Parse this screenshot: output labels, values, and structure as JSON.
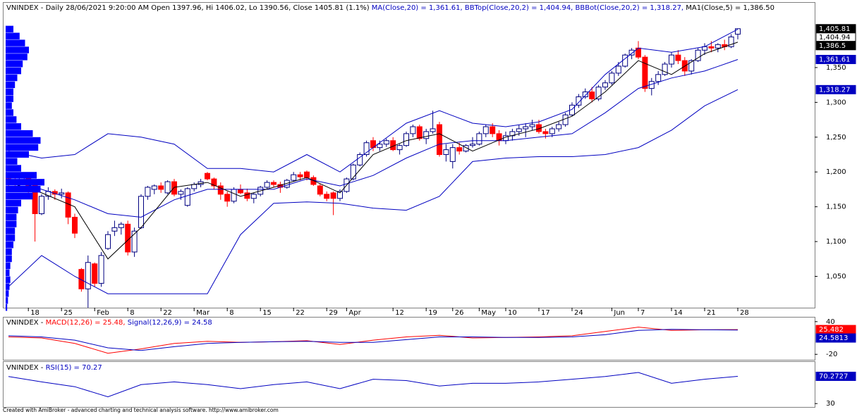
{
  "chart_data": [
    {
      "type": "candlestick",
      "title_parts": [
        {
          "text": "VNINDEX - Daily 28/06/2021 9:20:00 AM Open 1397.96, Hi 1406.02, Lo 1390.56, Close 1405.81 (1.1%)",
          "color": "#000000"
        },
        {
          "text": " MA(Close,20) = 1,361.61,",
          "color": "#0000c0"
        },
        {
          "text": " BBTop(Close,20,2) = 1,404.94,",
          "color": "#0000c0"
        },
        {
          "text": " BBBot(Close,20,2) = 1,318.27,",
          "color": "#0000c0"
        },
        {
          "text": " MA1(Close,5) = 1,386.50",
          "color": "#000000"
        }
      ],
      "categories": [
        null,
        null,
        null,
        "18",
        null,
        null,
        null,
        null,
        "25",
        null,
        null,
        null,
        null,
        "Feb",
        null,
        null,
        null,
        null,
        "8",
        null,
        null,
        null,
        null,
        "22",
        null,
        null,
        null,
        null,
        "Mar",
        null,
        null,
        null,
        null,
        "8",
        null,
        null,
        null,
        null,
        "15",
        null,
        null,
        null,
        null,
        "22",
        null,
        null,
        null,
        null,
        "29",
        null,
        null,
        "Apr",
        null,
        null,
        null,
        null,
        null,
        null,
        "12",
        null,
        null,
        null,
        null,
        "19",
        null,
        null,
        null,
        "26",
        null,
        null,
        null,
        "May",
        null,
        null,
        null,
        "10",
        null,
        null,
        null,
        null,
        "17",
        null,
        null,
        null,
        null,
        "24",
        null,
        null,
        null,
        null,
        null,
        "Jun",
        null,
        null,
        null,
        "7",
        null,
        null,
        null,
        null,
        "14",
        null,
        null,
        null,
        null,
        "21",
        null,
        null,
        null,
        null,
        "28"
      ],
      "open": [
        1190,
        1185,
        1183,
        1194,
        1180,
        1140,
        1165,
        1172,
        1168,
        1170,
        1135,
        1060,
        1032,
        1068,
        1040,
        1090,
        1115,
        1120,
        1125,
        1085,
        1120,
        1165,
        1175,
        1180,
        1170,
        1186,
        1168,
        1152,
        1176,
        1182,
        1198,
        1190,
        1180,
        1168,
        1158,
        1175,
        1170,
        1162,
        1168,
        1178,
        1185,
        1182,
        1178,
        1188,
        1196,
        1200,
        1192,
        1180,
        1168,
        1170,
        1162,
        1172,
        1190,
        1210,
        1225,
        1245,
        1235,
        1240,
        1245,
        1232,
        1238,
        1255,
        1265,
        1248,
        1258,
        1268,
        1225,
        1215,
        1235,
        1230,
        1238,
        1240,
        1255,
        1265,
        1255,
        1245,
        1252,
        1258,
        1262,
        1265,
        1268,
        1258,
        1255,
        1262,
        1268,
        1282,
        1296,
        1308,
        1315,
        1305,
        1322,
        1328,
        1342,
        1352,
        1368,
        1378,
        1365,
        1320,
        1330,
        1340,
        1355,
        1368,
        1360,
        1345,
        1360,
        1375,
        1380,
        1378,
        1383,
        1380,
        1397.96
      ],
      "high": [
        1195,
        1192,
        1195,
        1197,
        1182,
        1168,
        1178,
        1175,
        1176,
        1172,
        1140,
        1062,
        1080,
        1070,
        1085,
        1115,
        1130,
        1128,
        1130,
        1120,
        1168,
        1180,
        1182,
        1185,
        1188,
        1190,
        1175,
        1178,
        1185,
        1190,
        1200,
        1192,
        1185,
        1172,
        1178,
        1182,
        1176,
        1170,
        1180,
        1188,
        1188,
        1186,
        1190,
        1200,
        1200,
        1202,
        1195,
        1183,
        1172,
        1172,
        1175,
        1192,
        1212,
        1228,
        1245,
        1250,
        1245,
        1248,
        1250,
        1240,
        1258,
        1268,
        1268,
        1262,
        1288,
        1272,
        1240,
        1240,
        1242,
        1240,
        1250,
        1258,
        1268,
        1270,
        1260,
        1258,
        1262,
        1268,
        1270,
        1275,
        1275,
        1262,
        1265,
        1272,
        1285,
        1300,
        1312,
        1320,
        1322,
        1325,
        1332,
        1345,
        1358,
        1370,
        1378,
        1388,
        1368,
        1335,
        1345,
        1358,
        1372,
        1375,
        1365,
        1362,
        1378,
        1385,
        1388,
        1385,
        1390,
        1398,
        1406.02
      ],
      "low": [
        1180,
        1178,
        1182,
        1170,
        1100,
        1138,
        1160,
        1160,
        1162,
        1125,
        1105,
        1028,
        1000,
        1035,
        1035,
        1088,
        1108,
        1110,
        1080,
        1078,
        1118,
        1160,
        1168,
        1170,
        1168,
        1165,
        1160,
        1150,
        1172,
        1178,
        1188,
        1175,
        1160,
        1150,
        1155,
        1168,
        1158,
        1155,
        1165,
        1176,
        1178,
        1170,
        1176,
        1186,
        1188,
        1188,
        1180,
        1165,
        1158,
        1138,
        1158,
        1170,
        1188,
        1208,
        1222,
        1230,
        1230,
        1236,
        1230,
        1225,
        1236,
        1250,
        1245,
        1240,
        1255,
        1222,
        1215,
        1205,
        1225,
        1228,
        1235,
        1238,
        1250,
        1250,
        1238,
        1240,
        1245,
        1252,
        1250,
        1260,
        1255,
        1248,
        1250,
        1258,
        1265,
        1280,
        1292,
        1305,
        1300,
        1302,
        1318,
        1325,
        1338,
        1350,
        1362,
        1362,
        1315,
        1310,
        1325,
        1338,
        1350,
        1355,
        1338,
        1340,
        1358,
        1368,
        1372,
        1372,
        1375,
        1378,
        1390.56
      ],
      "close": [
        1185,
        1183,
        1194,
        1180,
        1140,
        1165,
        1172,
        1168,
        1170,
        1135,
        1112,
        1032,
        1070,
        1040,
        1080,
        1110,
        1120,
        1125,
        1085,
        1115,
        1165,
        1178,
        1180,
        1175,
        1186,
        1168,
        1172,
        1176,
        1182,
        1186,
        1190,
        1180,
        1168,
        1158,
        1175,
        1170,
        1162,
        1168,
        1178,
        1185,
        1182,
        1178,
        1188,
        1196,
        1193,
        1192,
        1182,
        1168,
        1162,
        1162,
        1172,
        1190,
        1210,
        1225,
        1242,
        1235,
        1240,
        1245,
        1232,
        1238,
        1255,
        1265,
        1248,
        1258,
        1262,
        1225,
        1232,
        1235,
        1230,
        1238,
        1240,
        1255,
        1265,
        1255,
        1245,
        1252,
        1258,
        1262,
        1265,
        1268,
        1258,
        1255,
        1262,
        1268,
        1282,
        1296,
        1308,
        1315,
        1305,
        1322,
        1328,
        1342,
        1352,
        1368,
        1375,
        1365,
        1320,
        1330,
        1340,
        1355,
        1368,
        1360,
        1345,
        1360,
        1375,
        1380,
        1378,
        1383,
        1380,
        1394,
        1405.81
      ],
      "up_color": "#ffffff",
      "down_color": "#ff0000",
      "outline_color": "#000080",
      "close_label": "1,405.81",
      "close_box_color": "#000000",
      "ylim": [
        1005,
        1442
      ],
      "yticks": [
        {
          "value": 1350,
          "label": "1,350"
        },
        {
          "value": 1300,
          "label": "1,300"
        },
        {
          "value": 1250,
          "label": "1,250"
        },
        {
          "value": 1200,
          "label": "1,200"
        },
        {
          "value": 1150,
          "label": "1,150"
        },
        {
          "value": 1100,
          "label": "1,100"
        },
        {
          "value": 1050,
          "label": "1,050"
        }
      ],
      "series": [
        {
          "color": "#0000c0",
          "x": [
            0,
            5,
            10,
            15,
            20,
            25,
            30,
            35,
            40,
            45,
            50,
            55,
            60,
            65,
            70,
            75,
            80,
            85,
            90,
            95,
            100,
            105,
            110
          ],
          "values": [
            1230,
            1220,
            1225,
            1255,
            1250,
            1240,
            1205,
            1205,
            1200,
            1225,
            1200,
            1235,
            1270,
            1288,
            1270,
            1265,
            1272,
            1290,
            1340,
            1378,
            1372,
            1380,
            1404.94
          ],
          "last_label": "1,404.94",
          "box_color": "#ffffff"
        },
        {
          "color": "#0000c0",
          "x": [
            0,
            5,
            10,
            15,
            20,
            25,
            30,
            35,
            40,
            45,
            50,
            55,
            60,
            65,
            70,
            75,
            80,
            85,
            90,
            95,
            100,
            105,
            110
          ],
          "values": [
            1035,
            1080,
            1050,
            1025,
            1025,
            1025,
            1025,
            1110,
            1155,
            1157,
            1155,
            1148,
            1145,
            1165,
            1215,
            1220,
            1222,
            1222,
            1225,
            1235,
            1260,
            1295,
            1318.27
          ],
          "last_label": "1,318.27",
          "box_color": "#0000c0"
        },
        {
          "color": "#0000c0",
          "x": [
            0,
            5,
            10,
            15,
            20,
            25,
            30,
            35,
            40,
            45,
            50,
            55,
            60,
            65,
            70,
            75,
            80,
            85,
            90,
            95,
            100,
            105,
            110
          ],
          "values": [
            1190,
            1175,
            1160,
            1140,
            1135,
            1160,
            1175,
            1175,
            1175,
            1190,
            1180,
            1195,
            1220,
            1240,
            1245,
            1245,
            1250,
            1255,
            1285,
            1320,
            1335,
            1345,
            1361.61
          ],
          "last_label": "1,361.61",
          "box_color": "#0000c0"
        },
        {
          "color": "#000000",
          "x": [
            0,
            5,
            10,
            15,
            20,
            25,
            30,
            35,
            40,
            45,
            50,
            55,
            60,
            65,
            70,
            75,
            80,
            85,
            90,
            95,
            100,
            105,
            110
          ],
          "values": [
            1185,
            1170,
            1150,
            1075,
            1120,
            1178,
            1185,
            1165,
            1178,
            1192,
            1170,
            1225,
            1245,
            1255,
            1230,
            1250,
            1262,
            1280,
            1315,
            1360,
            1340,
            1370,
            1386.5
          ],
          "last_label": "1,386.5",
          "box_color": "#000000"
        }
      ]
    },
    {
      "type": "line",
      "title_parts": [
        {
          "text": "VNINDEX - ",
          "color": "#000000"
        },
        {
          "text": "MACD(12,26) = 25.48,",
          "color": "#ff0000"
        },
        {
          "text": " Signal(12,26,9) = 24.58",
          "color": "#0000c0"
        }
      ],
      "ylim": [
        -28.75,
        46.25
      ],
      "yticks": [
        40,
        -20
      ],
      "series": [
        {
          "color": "#ff0000",
          "x": [
            0,
            5,
            10,
            15,
            20,
            25,
            30,
            35,
            40,
            45,
            50,
            55,
            60,
            65,
            70,
            75,
            80,
            85,
            90,
            95,
            100,
            105,
            110
          ],
          "values": [
            12,
            10,
            0,
            -18,
            -10,
            0,
            4,
            2,
            3,
            5,
            -2,
            6,
            12,
            15,
            10,
            11,
            12,
            14,
            22,
            30,
            24,
            25,
            25.482
          ],
          "last_label": "25.482",
          "box_color": "#ff0000"
        },
        {
          "color": "#0000c0",
          "x": [
            0,
            5,
            10,
            15,
            20,
            25,
            30,
            35,
            40,
            45,
            50,
            55,
            60,
            65,
            70,
            75,
            80,
            85,
            90,
            95,
            100,
            105,
            110
          ],
          "values": [
            14,
            12,
            6,
            -8,
            -13,
            -6,
            0,
            2,
            3,
            4,
            2,
            2,
            7,
            12,
            12,
            11,
            11,
            12,
            16,
            24,
            26,
            25,
            24.5813
          ],
          "last_label": "24.5813",
          "box_color": "#0000c0"
        }
      ]
    },
    {
      "type": "line",
      "title_parts": [
        {
          "text": "VNINDEX - ",
          "color": "#000000"
        },
        {
          "text": "RSI(15) = 70.27",
          "color": "#0000c0"
        }
      ],
      "ylim": [
        25,
        89.5
      ],
      "yticks": [
        30
      ],
      "series": [
        {
          "color": "#0000c0",
          "x": [
            0,
            5,
            10,
            15,
            20,
            25,
            30,
            35,
            40,
            45,
            50,
            55,
            60,
            65,
            70,
            75,
            80,
            85,
            90,
            95,
            100,
            105,
            110
          ],
          "values": [
            70,
            62,
            55,
            40,
            58,
            62,
            58,
            52,
            58,
            62,
            52,
            66,
            64,
            56,
            60,
            60,
            62,
            66,
            70,
            76,
            60,
            66,
            70.2727
          ],
          "last_label": "70.2727",
          "box_color": "#0000c0"
        }
      ]
    },
    {
      "type": "histogram",
      "orientation": "horizontal",
      "color": "#0000ff",
      "bins": [
        1000,
        1010,
        1020,
        1030,
        1040,
        1050,
        1060,
        1070,
        1080,
        1090,
        1100,
        1110,
        1120,
        1130,
        1140,
        1150,
        1160,
        1170,
        1180,
        1190,
        1200,
        1210,
        1220,
        1230,
        1240,
        1250,
        1260,
        1270,
        1280,
        1290,
        1300,
        1310,
        1320,
        1330,
        1340,
        1350,
        1360,
        1370,
        1380,
        1390,
        1400,
        1410
      ],
      "values": [
        2,
        3,
        4,
        5,
        6,
        5,
        6,
        8,
        8,
        10,
        12,
        12,
        14,
        14,
        16,
        20,
        35,
        45,
        50,
        40,
        20,
        15,
        30,
        42,
        45,
        35,
        20,
        14,
        10,
        8,
        10,
        10,
        12,
        15,
        20,
        22,
        28,
        30,
        25,
        18,
        10
      ],
      "xlim": [
        0,
        50
      ],
      "ylim": [
        1005,
        1442
      ]
    }
  ],
  "footer": "Created with AmiBroker - advanced charting and technical analysis software. http://www.amibroker.com"
}
